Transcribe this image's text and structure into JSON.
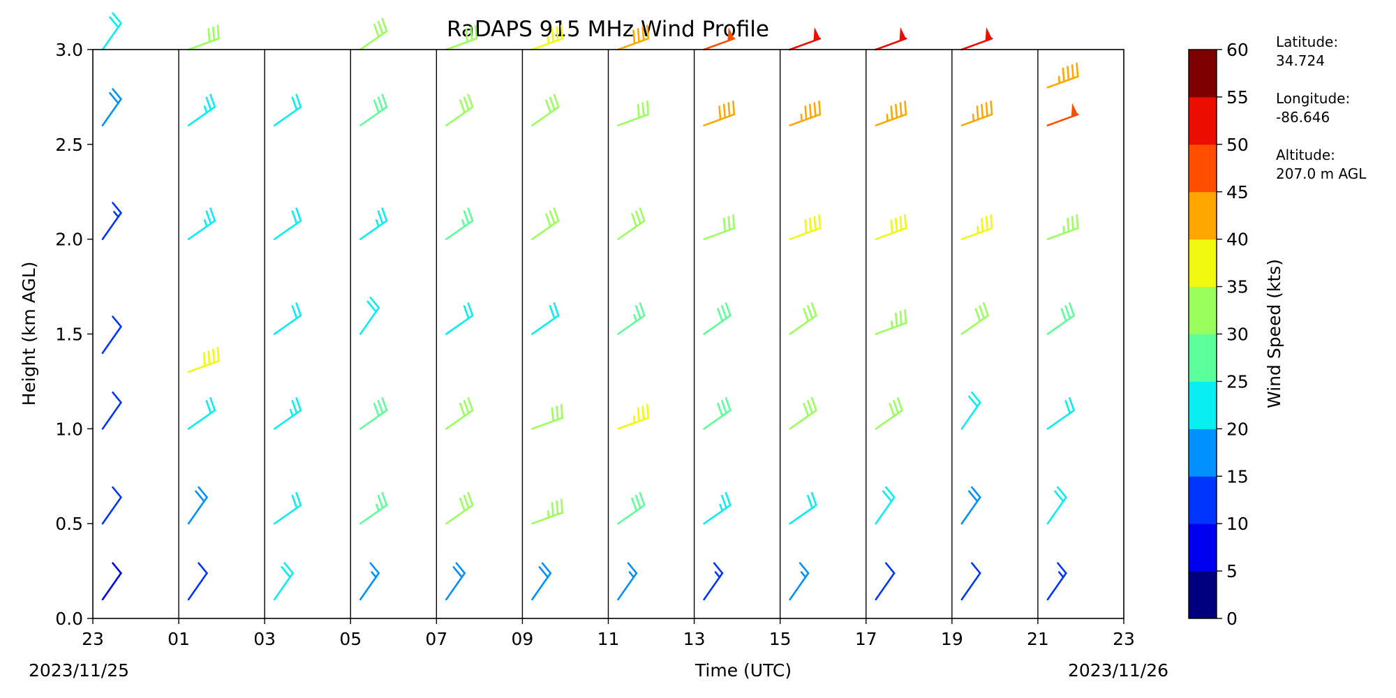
{
  "chart_data": {
    "type": "barbs",
    "title": "RaDAPS 915 MHz Wind Profile",
    "xlabel": "Time (UTC)",
    "ylabel": "Height (km AGL)",
    "x_ticks": [
      "23",
      "01",
      "03",
      "05",
      "07",
      "09",
      "11",
      "13",
      "15",
      "17",
      "19",
      "21",
      "23"
    ],
    "x_tick_hours": [
      0,
      2,
      4,
      6,
      8,
      10,
      12,
      14,
      16,
      18,
      20,
      22,
      24
    ],
    "x_range_hours": [
      0,
      24
    ],
    "start_date": "2023/11/25",
    "end_date": "2023/11/26",
    "y_ticks": [
      "0.0",
      "0.5",
      "1.0",
      "1.5",
      "2.0",
      "2.5",
      "3.0"
    ],
    "ylim": [
      0.0,
      3.0
    ],
    "colorbar": {
      "label": "Wind Speed (kts)",
      "ticks": [
        "0",
        "5",
        "10",
        "15",
        "20",
        "25",
        "30",
        "35",
        "40",
        "45",
        "50",
        "55",
        "60"
      ],
      "range": [
        0,
        60
      ],
      "colors": [
        "#00007f",
        "#0000f1",
        "#0035ff",
        "#0091ff",
        "#09eef0",
        "#5cff9a",
        "#9aff5c",
        "#f0f90f",
        "#ffa700",
        "#ff4e00",
        "#ea0d00",
        "#7f0000"
      ]
    },
    "columns": [
      {
        "hour": 0.0,
        "levels": [
          {
            "h": 0.1,
            "speed": 8
          },
          {
            "h": 0.5,
            "speed": 10
          },
          {
            "h": 1.0,
            "speed": 10
          },
          {
            "h": 1.4,
            "speed": 12
          },
          {
            "h": 2.0,
            "speed": 14
          },
          {
            "h": 2.6,
            "speed": 18
          },
          {
            "h": 3.0,
            "speed": 20
          }
        ]
      },
      {
        "hour": 2.0,
        "levels": [
          {
            "h": 0.1,
            "speed": 12
          },
          {
            "h": 0.5,
            "speed": 18
          },
          {
            "h": 1.0,
            "speed": 22
          },
          {
            "h": 1.3,
            "speed": 38
          },
          {
            "h": 2.0,
            "speed": 24
          },
          {
            "h": 2.6,
            "speed": 24
          },
          {
            "h": 3.0,
            "speed": 32
          }
        ]
      },
      {
        "hour": 4.0,
        "levels": [
          {
            "h": 0.1,
            "speed": 20
          },
          {
            "h": 0.5,
            "speed": 22
          },
          {
            "h": 1.0,
            "speed": 24
          },
          {
            "h": 1.5,
            "speed": 22
          },
          {
            "h": 2.0,
            "speed": 22
          },
          {
            "h": 2.6,
            "speed": 22
          }
        ]
      },
      {
        "hour": 6.0,
        "levels": [
          {
            "h": 0.1,
            "speed": 16
          },
          {
            "h": 0.5,
            "speed": 26
          },
          {
            "h": 1.0,
            "speed": 28
          },
          {
            "h": 1.5,
            "speed": 20
          },
          {
            "h": 2.0,
            "speed": 24
          },
          {
            "h": 2.6,
            "speed": 28
          },
          {
            "h": 3.0,
            "speed": 30
          }
        ]
      },
      {
        "hour": 8.0,
        "levels": [
          {
            "h": 0.1,
            "speed": 18
          },
          {
            "h": 0.5,
            "speed": 30
          },
          {
            "h": 1.0,
            "speed": 30
          },
          {
            "h": 1.5,
            "speed": 22
          },
          {
            "h": 2.0,
            "speed": 26
          },
          {
            "h": 2.6,
            "speed": 30
          },
          {
            "h": 3.0,
            "speed": 32
          }
        ]
      },
      {
        "hour": 10.0,
        "levels": [
          {
            "h": 0.1,
            "speed": 18
          },
          {
            "h": 0.5,
            "speed": 34
          },
          {
            "h": 1.0,
            "speed": 32
          },
          {
            "h": 1.5,
            "speed": 22
          },
          {
            "h": 2.0,
            "speed": 30
          },
          {
            "h": 2.6,
            "speed": 30
          },
          {
            "h": 3.0,
            "speed": 36
          }
        ]
      },
      {
        "hour": 12.0,
        "levels": [
          {
            "h": 0.1,
            "speed": 16
          },
          {
            "h": 0.5,
            "speed": 28
          },
          {
            "h": 1.0,
            "speed": 36
          },
          {
            "h": 1.5,
            "speed": 26
          },
          {
            "h": 2.0,
            "speed": 30
          },
          {
            "h": 2.6,
            "speed": 32
          },
          {
            "h": 3.0,
            "speed": 40
          }
        ]
      },
      {
        "hour": 14.0,
        "levels": [
          {
            "h": 0.1,
            "speed": 14
          },
          {
            "h": 0.5,
            "speed": 24
          },
          {
            "h": 1.0,
            "speed": 28
          },
          {
            "h": 1.5,
            "speed": 28
          },
          {
            "h": 2.0,
            "speed": 32
          },
          {
            "h": 2.6,
            "speed": 42
          },
          {
            "h": 3.0,
            "speed": 48
          }
        ]
      },
      {
        "hour": 16.0,
        "levels": [
          {
            "h": 0.1,
            "speed": 16
          },
          {
            "h": 0.5,
            "speed": 22
          },
          {
            "h": 1.0,
            "speed": 30
          },
          {
            "h": 1.5,
            "speed": 30
          },
          {
            "h": 2.0,
            "speed": 38
          },
          {
            "h": 2.6,
            "speed": 44
          },
          {
            "h": 3.0,
            "speed": 52
          }
        ]
      },
      {
        "hour": 18.0,
        "levels": [
          {
            "h": 0.1,
            "speed": 12
          },
          {
            "h": 0.5,
            "speed": 20
          },
          {
            "h": 1.0,
            "speed": 30
          },
          {
            "h": 1.5,
            "speed": 34
          },
          {
            "h": 2.0,
            "speed": 38
          },
          {
            "h": 2.6,
            "speed": 44
          },
          {
            "h": 3.0,
            "speed": 52
          }
        ]
      },
      {
        "hour": 20.0,
        "levels": [
          {
            "h": 0.1,
            "speed": 12
          },
          {
            "h": 0.5,
            "speed": 18
          },
          {
            "h": 1.0,
            "speed": 20
          },
          {
            "h": 1.5,
            "speed": 30
          },
          {
            "h": 2.0,
            "speed": 36
          },
          {
            "h": 2.6,
            "speed": 44
          },
          {
            "h": 3.0,
            "speed": 52
          }
        ]
      },
      {
        "hour": 22.0,
        "levels": [
          {
            "h": 0.1,
            "speed": 14
          },
          {
            "h": 0.5,
            "speed": 20
          },
          {
            "h": 1.0,
            "speed": 22
          },
          {
            "h": 1.5,
            "speed": 28
          },
          {
            "h": 2.0,
            "speed": 34
          },
          {
            "h": 2.6,
            "speed": 48
          },
          {
            "h": 2.8,
            "speed": 44
          }
        ]
      }
    ],
    "grid": "vertical lines at every x tick"
  },
  "station": {
    "latitude_label": "Latitude:",
    "latitude_value": "34.724",
    "longitude_label": "Longitude:",
    "longitude_value": "-86.646",
    "altitude_label": "Altitude:",
    "altitude_value": "207.0 m AGL"
  }
}
